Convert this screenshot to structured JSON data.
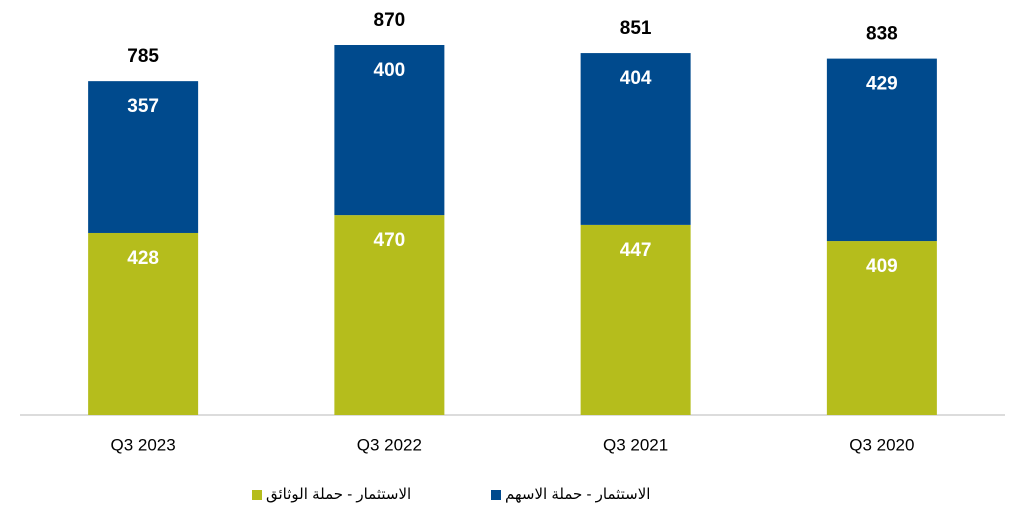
{
  "chart_data": {
    "type": "stacked_bar",
    "categories": [
      "Q3 2023",
      "Q3 2022",
      "Q3 2021",
      "Q3 2020"
    ],
    "series": [
      {
        "name": "الاستثمار - حملة الوثائق",
        "color": "#b5bd1c",
        "values": [
          428,
          470,
          447,
          409
        ]
      },
      {
        "name": "الاستثمار - حملة الاسهم",
        "color": "#004a8d",
        "values": [
          357,
          400,
          404,
          429
        ]
      }
    ],
    "totals": [
      785,
      870,
      851,
      838
    ]
  }
}
